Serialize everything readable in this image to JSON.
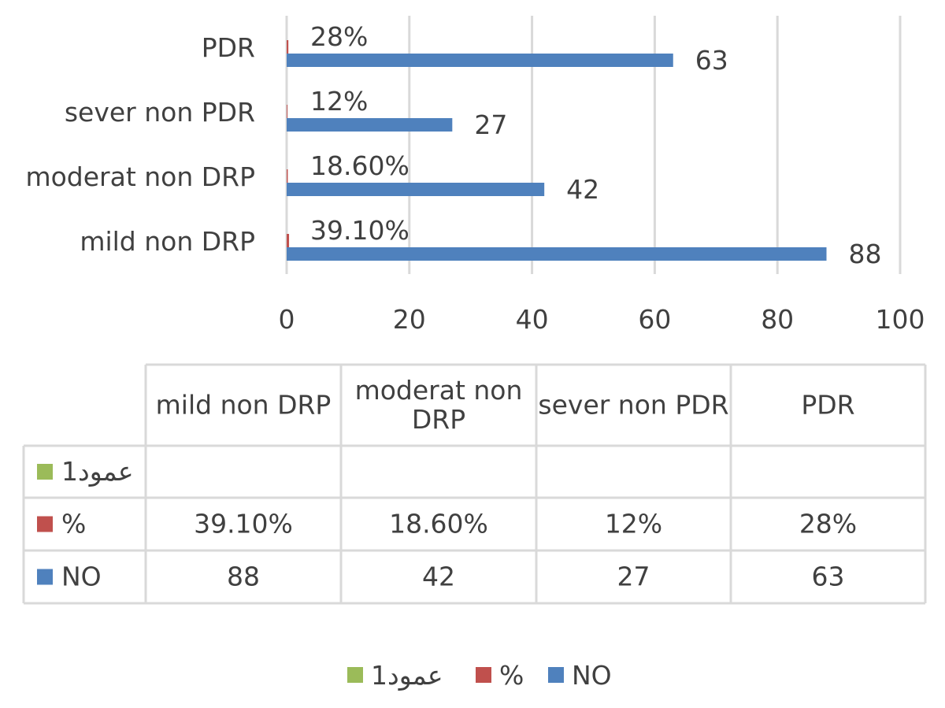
{
  "chart_data": {
    "type": "bar",
    "orientation": "horizontal",
    "categories": [
      "mild non DRP",
      "moderat non DRP",
      "sever non PDR",
      "PDR"
    ],
    "series": [
      {
        "name": "عمود1",
        "values": [
          null,
          null,
          null,
          null
        ],
        "color": "#9BBB59"
      },
      {
        "name": "%",
        "values": [
          0.391,
          0.186,
          0.12,
          0.28
        ],
        "labels": [
          "39.10%",
          "18.60%",
          "12%",
          "28%"
        ],
        "color": "#C0504D"
      },
      {
        "name": "NO",
        "values": [
          88,
          42,
          27,
          63
        ],
        "labels": [
          "88",
          "42",
          "27",
          "63"
        ],
        "color": "#4F81BD"
      }
    ],
    "xlim": [
      0,
      100
    ],
    "xticks": [
      "0",
      "20",
      "40",
      "60",
      "80",
      "100"
    ],
    "grid": "vertical",
    "data_table": {
      "headers": [
        "mild non DRP",
        "moderat non DRP",
        "sever non PDR",
        "PDR"
      ],
      "rows": [
        {
          "key": "عمود1",
          "cells": [
            "",
            "",
            "",
            ""
          ],
          "color": "#9BBB59"
        },
        {
          "key": "%",
          "cells": [
            "39.10%",
            "18.60%",
            "12%",
            "28%"
          ],
          "color": "#C0504D"
        },
        {
          "key": "NO",
          "cells": [
            "88",
            "42",
            "27",
            "63"
          ],
          "color": "#4F81BD"
        }
      ]
    },
    "legend_position": "bottom",
    "legend": [
      "عمود1",
      "%",
      "NO"
    ]
  }
}
